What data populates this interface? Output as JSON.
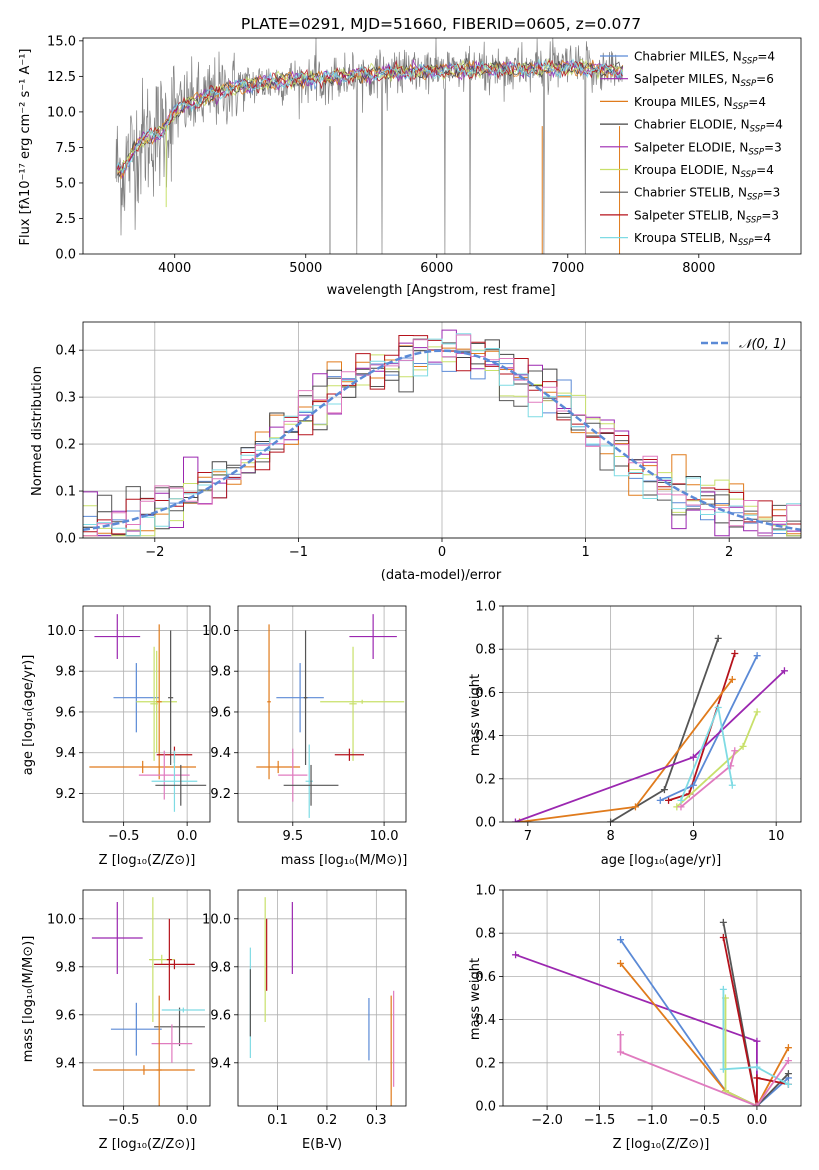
{
  "colors": {
    "chabrier_miles": "#5b8ad6",
    "salpeter_miles": "#9b27b0",
    "kroupa_miles": "#e07b1c",
    "chabrier_elodie": "#444444",
    "salpeter_elodie": "#9b27b0",
    "kroupa_elodie": "#c8e06a",
    "chabrier_stelib": "#555555",
    "salpeter_stelib": "#b5121b",
    "kroupa_stelib": "#7fdbe4",
    "pink": "#e07bbf",
    "data_gray": "#808080"
  },
  "chart_data": [
    {
      "id": "spectrum",
      "type": "line",
      "title": "PLATE=0291, MJD=51660, FIBERID=0605, z=0.077",
      "xlabel": "wavelength [Angstrom, rest frame]",
      "ylabel": "Flux [fλ10⁻¹⁷ erg cm⁻² s⁻¹ A⁻¹]",
      "xlim": [
        3300,
        8780
      ],
      "ylim": [
        0,
        15.2
      ],
      "xticks": [
        "4000",
        "5000",
        "6000",
        "7000",
        "8000"
      ],
      "yticks": [
        "0.0",
        "2.5",
        "5.0",
        "7.5",
        "10.0",
        "12.5",
        "15.0"
      ],
      "legend_position": "right",
      "legend": [
        {
          "label": "Chabrier MILES, N",
          "sub": "SSP",
          "value": "=4",
          "color": "#5b8ad6"
        },
        {
          "label": "Salpeter MILES, N",
          "sub": "SSP",
          "value": "=6",
          "color": "#9b27b0"
        },
        {
          "label": "Kroupa MILES, N",
          "sub": "SSP",
          "value": "=4",
          "color": "#e07b1c"
        },
        {
          "label": "Chabrier ELODIE, N",
          "sub": "SSP",
          "value": "=4",
          "color": "#444444"
        },
        {
          "label": "Salpeter ELODIE, N",
          "sub": "SSP",
          "value": "=3",
          "color": "#9b27b0"
        },
        {
          "label": "Kroupa ELODIE, N",
          "sub": "SSP",
          "value": "=4",
          "color": "#c8e06a"
        },
        {
          "label": "Chabrier STELIB, N",
          "sub": "SSP",
          "value": "=3",
          "color": "#555555"
        },
        {
          "label": "Salpeter STELIB, N",
          "sub": "SSP",
          "value": "=3",
          "color": "#b5121b"
        },
        {
          "label": "Kroupa STELIB, N",
          "sub": "SSP",
          "value": "=4",
          "color": "#7fdbe4"
        }
      ],
      "continuum": {
        "x": [
          3550,
          3600,
          3700,
          3800,
          3900,
          3950,
          4000,
          4100,
          4200,
          4300,
          4400,
          4500,
          4700,
          5000,
          5500,
          6000,
          6500,
          6700,
          7000,
          7200,
          7400
        ],
        "y": [
          6.0,
          5.8,
          7.5,
          8.3,
          8.6,
          9.3,
          10.0,
          10.6,
          10.8,
          11.3,
          11.6,
          11.8,
          12.1,
          12.3,
          12.7,
          12.9,
          13.0,
          13.0,
          13.1,
          13.0,
          12.9
        ]
      }
    },
    {
      "id": "residuals",
      "type": "histogram",
      "xlabel": "(data-model)/error",
      "ylabel": "Normed distribution",
      "xlim": [
        -2.5,
        2.5
      ],
      "ylim": [
        0,
        0.46
      ],
      "xticks": [
        "−2",
        "−1",
        "0",
        "1",
        "2"
      ],
      "yticks": [
        "0.0",
        "0.1",
        "0.2",
        "0.3",
        "0.4"
      ],
      "legend_label": "𝒩(0, 1)",
      "legend_position": "top-right",
      "gaussian": {
        "mean": 0,
        "sigma": 1
      }
    },
    {
      "id": "age_vs_Z",
      "type": "errorbar",
      "xlabel": "Z [log₁₀(Z/Z⊙)]",
      "ylabel": "age  [log₁₀(age/yr)]",
      "xlim": [
        -0.82,
        0.18
      ],
      "ylim": [
        9.06,
        10.12
      ],
      "xticks": [
        "−0.5",
        "0.0"
      ],
      "yticks": [
        "9.2",
        "9.4",
        "9.6",
        "9.8",
        "10.0"
      ],
      "points": [
        {
          "x": -0.55,
          "y": 9.97,
          "xerr": 0.18,
          "yerr": 0.11,
          "color": "#9b27b0"
        },
        {
          "x": -0.4,
          "y": 9.67,
          "xerr": 0.18,
          "yerr": 0.17,
          "color": "#5b8ad6"
        },
        {
          "x": -0.26,
          "y": 9.64,
          "xerr": 0.03,
          "yerr": 0.28,
          "color": "#c8e06a"
        },
        {
          "x": -0.24,
          "y": 9.65,
          "xerr": 0.16,
          "yerr": 0.25,
          "color": "#c8e06a"
        },
        {
          "x": -0.13,
          "y": 9.67,
          "xerr": 0.02,
          "yerr": 0.33,
          "color": "#555555"
        },
        {
          "x": -0.22,
          "y": 9.65,
          "xerr": 0.02,
          "yerr": 0.38,
          "color": "#e07b1c"
        },
        {
          "x": -0.1,
          "y": 9.39,
          "xerr": 0.14,
          "yerr": 0.04,
          "color": "#b5121b"
        },
        {
          "x": -0.35,
          "y": 9.33,
          "xerr": 0.42,
          "yerr": 0.03,
          "color": "#e07b1c"
        },
        {
          "x": -0.18,
          "y": 9.29,
          "xerr": 0.2,
          "yerr": 0.12,
          "color": "#e07bbf"
        },
        {
          "x": -0.1,
          "y": 9.26,
          "xerr": 0.18,
          "yerr": 0.15,
          "color": "#7fdbe4"
        },
        {
          "x": -0.05,
          "y": 9.24,
          "xerr": 0.2,
          "yerr": 0.1,
          "color": "#555555"
        }
      ]
    },
    {
      "id": "age_vs_mass",
      "type": "errorbar",
      "xlabel": "mass [log₁₀(M/M⊙)]",
      "ylabel": "",
      "xlim": [
        9.2,
        10.12
      ],
      "ylim": [
        9.06,
        10.12
      ],
      "xticks": [
        "9.5",
        "10.0"
      ],
      "yticks": [
        "9.2",
        "9.4",
        "9.6",
        "9.8",
        "10.0"
      ],
      "points": [
        {
          "x": 9.94,
          "y": 9.97,
          "xerr": 0.13,
          "yerr": 0.11,
          "color": "#9b27b0"
        },
        {
          "x": 9.54,
          "y": 9.67,
          "xerr": 0.13,
          "yerr": 0.17,
          "color": "#5b8ad6"
        },
        {
          "x": 9.83,
          "y": 9.64,
          "xerr": 0.02,
          "yerr": 0.28,
          "color": "#c8e06a"
        },
        {
          "x": 9.88,
          "y": 9.65,
          "xerr": 0.23,
          "yerr": 0.01,
          "color": "#c8e06a"
        },
        {
          "x": 9.57,
          "y": 9.67,
          "xerr": 0.01,
          "yerr": 0.33,
          "color": "#555555"
        },
        {
          "x": 9.37,
          "y": 9.65,
          "xerr": 0.01,
          "yerr": 0.38,
          "color": "#e07b1c"
        },
        {
          "x": 9.81,
          "y": 9.39,
          "xerr": 0.08,
          "yerr": 0.03,
          "color": "#b5121b"
        },
        {
          "x": 9.42,
          "y": 9.33,
          "xerr": 0.12,
          "yerr": 0.03,
          "color": "#e07b1c"
        },
        {
          "x": 9.5,
          "y": 9.29,
          "xerr": 0.08,
          "yerr": 0.13,
          "color": "#e07bbf"
        },
        {
          "x": 9.59,
          "y": 9.26,
          "xerr": 0.02,
          "yerr": 0.18,
          "color": "#7fdbe4"
        },
        {
          "x": 9.6,
          "y": 9.24,
          "xerr": 0.15,
          "yerr": 0.1,
          "color": "#555555"
        }
      ]
    },
    {
      "id": "massweight_vs_age",
      "type": "line",
      "xlabel": "age  [log₁₀(age/yr)]",
      "ylabel": "mass weight",
      "xlim": [
        6.7,
        10.3
      ],
      "ylim": [
        0,
        1.0
      ],
      "xticks": [
        "7",
        "8",
        "9",
        "10"
      ],
      "yticks": [
        "0.0",
        "0.2",
        "0.4",
        "0.6",
        "0.8",
        "1.0"
      ],
      "series": [
        {
          "color": "#555555",
          "x": [
            8.0,
            8.65,
            9.3
          ],
          "y": [
            0.0,
            0.15,
            0.85
          ]
        },
        {
          "color": "#b5121b",
          "x": [
            8.7,
            8.95,
            9.5
          ],
          "y": [
            0.1,
            0.13,
            0.78
          ]
        },
        {
          "color": "#5b8ad6",
          "x": [
            8.6,
            9.0,
            9.77
          ],
          "y": [
            0.1,
            0.17,
            0.77
          ]
        },
        {
          "color": "#e07b1c",
          "x": [
            6.9,
            8.3,
            9.47
          ],
          "y": [
            0.0,
            0.07,
            0.66
          ]
        },
        {
          "color": "#9b27b0",
          "x": [
            6.85,
            9.0,
            10.1
          ],
          "y": [
            0.0,
            0.3,
            0.7
          ]
        },
        {
          "color": "#c8e06a",
          "x": [
            8.8,
            9.6,
            9.77
          ],
          "y": [
            0.07,
            0.35,
            0.51
          ]
        },
        {
          "color": "#e07bbf",
          "x": [
            8.85,
            9.45,
            9.5
          ],
          "y": [
            0.07,
            0.26,
            0.33
          ]
        },
        {
          "color": "#7fdbe4",
          "x": [
            8.85,
            9.3,
            9.47
          ],
          "y": [
            0.1,
            0.53,
            0.17
          ]
        }
      ]
    },
    {
      "id": "mass_vs_Z",
      "type": "errorbar",
      "xlabel": "Z [log₁₀(Z/Z⊙)]",
      "ylabel": "mass [log₁₀(M/M⊙)]",
      "xlim": [
        -0.82,
        0.18
      ],
      "ylim": [
        9.22,
        10.12
      ],
      "xticks": [
        "−0.5",
        "0.0"
      ],
      "yticks": [
        "9.4",
        "9.6",
        "9.8",
        "10.0"
      ],
      "points": [
        {
          "x": -0.55,
          "y": 9.92,
          "xerr": 0.2,
          "yerr": 0.15,
          "color": "#9b27b0"
        },
        {
          "x": -0.4,
          "y": 9.54,
          "xerr": 0.2,
          "yerr": 0.11,
          "color": "#5b8ad6"
        },
        {
          "x": -0.27,
          "y": 9.83,
          "xerr": 0.02,
          "yerr": 0.26,
          "color": "#c8e06a"
        },
        {
          "x": -0.2,
          "y": 9.83,
          "xerr": 0.1,
          "yerr": 0.02,
          "color": "#c8e06a"
        },
        {
          "x": -0.14,
          "y": 9.83,
          "xerr": 0.02,
          "yerr": 0.17,
          "color": "#b5121b"
        },
        {
          "x": -0.1,
          "y": 9.81,
          "xerr": 0.16,
          "yerr": 0.02,
          "color": "#b5121b"
        },
        {
          "x": -0.06,
          "y": 9.55,
          "xerr": 0.2,
          "yerr": 0.08,
          "color": "#555555"
        },
        {
          "x": -0.03,
          "y": 9.62,
          "xerr": 0.17,
          "yerr": 0.01,
          "color": "#7fdbe4"
        },
        {
          "x": -0.12,
          "y": 9.48,
          "xerr": 0.16,
          "yerr": 0.08,
          "color": "#e07bbf"
        },
        {
          "x": -0.22,
          "y": 9.37,
          "xerr": 0.02,
          "yerr": 0.31,
          "color": "#e07b1c"
        },
        {
          "x": -0.34,
          "y": 9.37,
          "xerr": 0.4,
          "yerr": 0.02,
          "color": "#e07b1c"
        }
      ]
    },
    {
      "id": "mass_vs_ebv",
      "type": "errorbar",
      "xlabel": "E(B-V)",
      "ylabel": "",
      "xlim": [
        0.02,
        0.36
      ],
      "ylim": [
        9.22,
        10.12
      ],
      "xticks": [
        "0.1",
        "0.2",
        "0.3"
      ],
      "yticks": [
        "9.4",
        "9.6",
        "9.8",
        "10.0"
      ],
      "points": [
        {
          "x": 0.045,
          "y": 9.65,
          "xerr": 0,
          "yerr": 0.23,
          "color": "#7fdbe4"
        },
        {
          "x": 0.045,
          "y": 9.65,
          "xerr": 0,
          "yerr": 0.14,
          "color": "#555555"
        },
        {
          "x": 0.075,
          "y": 9.83,
          "xerr": 0,
          "yerr": 0.26,
          "color": "#c8e06a"
        },
        {
          "x": 0.078,
          "y": 9.85,
          "xerr": 0,
          "yerr": 0.15,
          "color": "#b5121b"
        },
        {
          "x": 0.13,
          "y": 9.92,
          "xerr": 0,
          "yerr": 0.15,
          "color": "#9b27b0"
        },
        {
          "x": 0.285,
          "y": 9.54,
          "xerr": 0,
          "yerr": 0.13,
          "color": "#5b8ad6"
        },
        {
          "x": 0.33,
          "y": 9.45,
          "xerr": 0,
          "yerr": 0.23,
          "color": "#e07b1c"
        },
        {
          "x": 0.335,
          "y": 9.5,
          "xerr": 0,
          "yerr": 0.2,
          "color": "#e07bbf"
        }
      ]
    },
    {
      "id": "massweight_vs_Z",
      "type": "line",
      "xlabel": "Z [log₁₀(Z/Z⊙)]",
      "ylabel": "mass weight",
      "xlim": [
        -2.42,
        0.42
      ],
      "ylim": [
        0,
        1.0
      ],
      "xticks": [
        "−2.0",
        "−1.5",
        "−1.0",
        "−0.5",
        "0.0"
      ],
      "yticks": [
        "0.0",
        "0.2",
        "0.4",
        "0.6",
        "0.8",
        "1.0"
      ],
      "series": [
        {
          "color": "#9b27b0",
          "x": [
            -2.3,
            0.0,
            0.0
          ],
          "y": [
            0.7,
            0.3,
            0.0
          ]
        },
        {
          "color": "#5b8ad6",
          "x": [
            -1.3,
            -0.3,
            0.0,
            0.3
          ],
          "y": [
            0.77,
            0.07,
            0.0,
            0.13
          ]
        },
        {
          "color": "#e07b1c",
          "x": [
            -1.3,
            -0.3,
            0.0,
            0.3
          ],
          "y": [
            0.66,
            0.07,
            0.0,
            0.27
          ]
        },
        {
          "color": "#555555",
          "x": [
            -0.32,
            0.0,
            0.3
          ],
          "y": [
            0.85,
            0.0,
            0.15
          ]
        },
        {
          "color": "#b5121b",
          "x": [
            -0.32,
            0.0,
            0.0,
            0.3
          ],
          "y": [
            0.78,
            0.0,
            0.13,
            0.1
          ]
        },
        {
          "color": "#c8e06a",
          "x": [
            -0.3,
            -0.3,
            0.0
          ],
          "y": [
            0.5,
            0.07,
            0.0
          ]
        },
        {
          "color": "#7fdbe4",
          "x": [
            -0.32,
            -0.32,
            0.0,
            0.3
          ],
          "y": [
            0.54,
            0.17,
            0.18,
            0.1
          ]
        },
        {
          "color": "#e07bbf",
          "x": [
            -1.3,
            -1.3,
            0.0,
            0.3
          ],
          "y": [
            0.33,
            0.25,
            0.0,
            0.21
          ]
        }
      ]
    }
  ]
}
